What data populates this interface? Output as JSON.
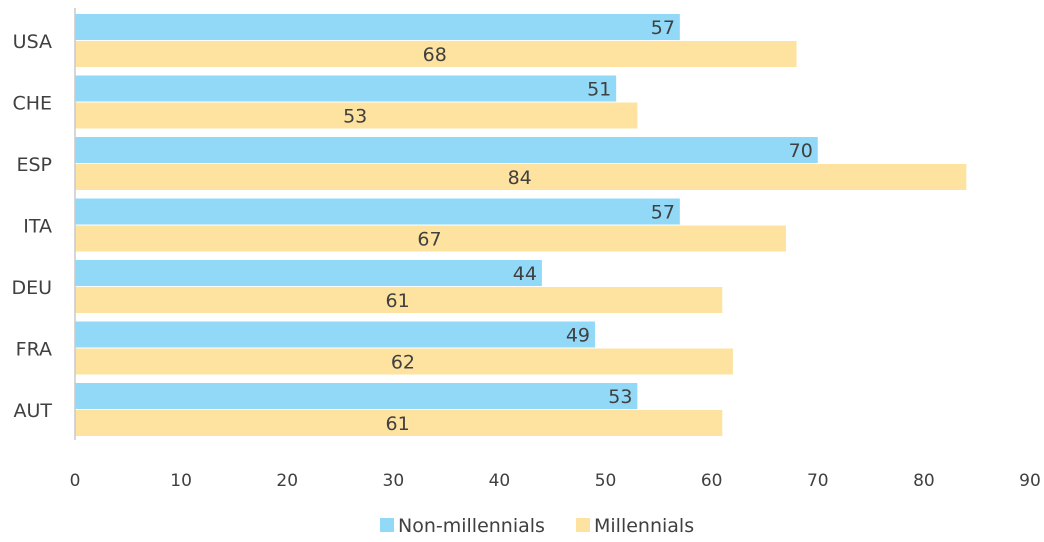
{
  "chart_data": {
    "type": "bar",
    "orientation": "horizontal",
    "categories": [
      "USA",
      "CHE",
      "ESP",
      "ITA",
      "DEU",
      "FRA",
      "AUT"
    ],
    "series": [
      {
        "name": "Non-millennials",
        "color": "#92D9F8",
        "values": [
          57,
          51,
          70,
          57,
          44,
          49,
          53
        ]
      },
      {
        "name": "Millennials",
        "color": "#FDE39F",
        "values": [
          68,
          53,
          84,
          67,
          61,
          62,
          61
        ]
      }
    ],
    "xlim": [
      0,
      90
    ],
    "xticks": [
      0,
      10,
      20,
      30,
      40,
      50,
      60,
      70,
      80,
      90
    ],
    "grid": false,
    "legend_position": "bottom",
    "title": "",
    "xlabel": "",
    "ylabel": ""
  }
}
